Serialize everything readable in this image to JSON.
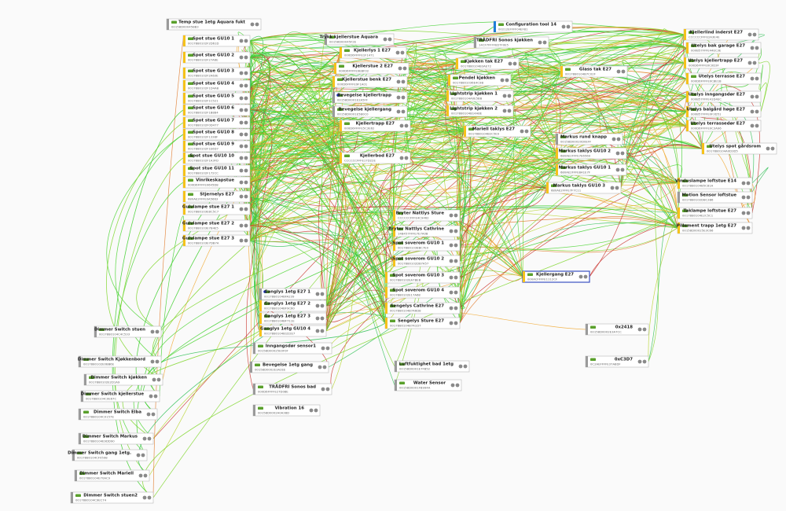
{
  "nodes": [
    {
      "label": "Temp stue 1etg Aquara fukt",
      "id": "00158D00045BB3"
    },
    {
      "label": "Configuration tool 14",
      "id": "00212EFFFF04EF81"
    },
    {
      "label": "Trykk kjellerstue Aquara",
      "id": "00158D00045F2E"
    },
    {
      "label": "TRÅDFRI Sonos kjøkken",
      "id": "14CF7FFFFED7F0E5"
    },
    {
      "label": "Kjellerlind inderst E27",
      "id": "CCCCCCFFFE2A3E4E"
    },
    {
      "label": "Spot stue GU10 1",
      "id": "0017880102F2D61D"
    },
    {
      "label": "Kjellerlys 1 E27",
      "id": "000D6FFFFE1F1471"
    },
    {
      "label": "Utelys bak garage E27",
      "id": "000B57FFFE44EC3E"
    },
    {
      "label": "Spot stue GU10 2",
      "id": "0017880102F27A6E"
    },
    {
      "label": "Kjøkken tak E27",
      "id": "0017880104B3AE72"
    },
    {
      "label": "Utelys kjellertrapp E27",
      "id": "000D6FFFFE0C0D3F"
    },
    {
      "label": "Kjellerstue 2 E27",
      "id": "000D6FFFFE9EBF02"
    },
    {
      "label": "Glass tak E27",
      "id": "0017880104B7C02F"
    },
    {
      "label": "Spot stue GU10 3",
      "id": "0017880102F2A63E"
    },
    {
      "label": "Pendel kjøkken",
      "id": "00178801036E4C9B"
    },
    {
      "label": "Utelys terrasse E27",
      "id": "000D6FFFFE0C8E1B"
    },
    {
      "label": "Kjellerstue benk E27",
      "id": "000D6FFFFE9F1A01"
    },
    {
      "label": "Spot stue GU10 4",
      "id": "0017880102F1D4A8"
    },
    {
      "label": "Lightstrip kjøkken 1",
      "id": "0017880104A0E5BB"
    },
    {
      "label": "Bevegelse kjellertrapp",
      "id": "00158D0001E2A5FF"
    },
    {
      "label": "Utelys inngangsdør E27",
      "id": "000B57FFFE41D4EC"
    },
    {
      "label": "Spot stue GU10 5",
      "id": "0017880102F1C521"
    },
    {
      "label": "Lightstrip kjøkken 2",
      "id": "0017880104B14A8E"
    },
    {
      "label": "Bevegelse kjellergang",
      "id": "00158D0001E5B0C0"
    },
    {
      "label": "Utelys balgård høge E27",
      "id": "000B57FFFE0F3D51"
    },
    {
      "label": "Spot stue GU10 6",
      "id": "0017880102F1B884"
    },
    {
      "label": "Spot stue GU10 7",
      "id": "0017880102F0D477"
    },
    {
      "label": "Kjellertrapp E27",
      "id": "000D6FFFFE5C3E62"
    },
    {
      "label": "Utelys terrassedør E27",
      "id": "000D6FFFFE0C3A96"
    },
    {
      "label": "Mariell taklys E27",
      "id": "0017880104B2C5E9"
    },
    {
      "label": "Spot stue GU10 8",
      "id": "0017880102F1338F"
    },
    {
      "label": "Markus rund knapp",
      "id": "00158D00020D0EFF"
    },
    {
      "label": "Spot stue GU10 9",
      "id": "0017880102F1E6D7"
    },
    {
      "label": "Utelys spot gårdsrom",
      "id": "0017880104A0D3D5"
    },
    {
      "label": "Markus taklys GU10 2",
      "id": "680AE2FFFE7E6569"
    },
    {
      "label": "Kjellerbod E27",
      "id": "CCCCCCFFFE17D22E"
    },
    {
      "label": "Spot stue GU10 10",
      "id": "0017880102F1A3FD"
    },
    {
      "label": "Spot stue GU10 11",
      "id": "0017880102F172CC"
    },
    {
      "label": "Markus taklys GU10 1",
      "id": "680AE2FFFE8A1E7F"
    },
    {
      "label": "Vinduslampe loftstue E14",
      "id": "0017880104B5C81A"
    },
    {
      "label": "Vinrikeskapstue",
      "id": "000D6FFFFE0645D8"
    },
    {
      "label": "Markus taklys GU10 3",
      "id": "680AE2FFFE7F7C11"
    },
    {
      "label": "Motion Sensor loftstue",
      "id": "0017880102D8C386"
    },
    {
      "label": "Stjernelys E27",
      "id": "680AE2FFFE0A5663"
    },
    {
      "label": "Gulvlampe stue E27 1",
      "id": "0017880103E8C5C7"
    },
    {
      "label": "Taklampe loftstue E27",
      "id": "0017880104E2C5C1"
    },
    {
      "label": "Bryter Nattlys Sture",
      "id": "CCCCCCFFFE4C9462"
    },
    {
      "label": "Gulvlampe stue E27 2",
      "id": "0017880103E7B4E5"
    },
    {
      "label": "Pillement trapp 1etg E27",
      "id": "00158D00025E3C66"
    },
    {
      "label": "Bryter Nattlys Cathrine",
      "id": "14B457FFFE7E7A0B"
    },
    {
      "label": "Gulvlampe stue E27 3",
      "id": "0017880103E7DB7A"
    },
    {
      "label": "Spot soverom GU10 1",
      "id": "00178801038BC7E0"
    },
    {
      "label": "Spot soverom GU10 2",
      "id": "0017880102D87A57"
    },
    {
      "label": "Kjellergang E27",
      "id": "000ACFFFFE1112CF"
    },
    {
      "label": "Spot soverom GU10 3",
      "id": "0017880102EA7BEB"
    },
    {
      "label": "Ganglys 1etg E27 1",
      "id": "0017880104BFA239"
    },
    {
      "label": "Spot soverom GU10 4",
      "id": "0017880102E17A68"
    },
    {
      "label": "Ganglys 1etg E27 2",
      "id": "0017880104BF9C60"
    },
    {
      "label": "Sengelys Cathrine E27",
      "id": "0017880104B7A6D8"
    },
    {
      "label": "Ganglys 1etg E27 3",
      "id": "0017880104BF711E"
    },
    {
      "label": "Sengelys Sture E27",
      "id": "0017880104B7A1D7"
    },
    {
      "label": "0x2418",
      "id": "00158D0002E3A7CC"
    },
    {
      "label": "Dimmer Switch stuen",
      "id": "0017880104C4C533"
    },
    {
      "label": "Ganglys 1etg GU10 4",
      "id": "0017880104B1D2E7"
    },
    {
      "label": "Inngangsdør sensor1",
      "id": "00158D00025E0F0F"
    },
    {
      "label": "Dimmer Switch Kjøkkenbord",
      "id": "0017880102E0BB6E"
    },
    {
      "label": "0xC3D7",
      "id": "0C2AEFFFFE37A8DF"
    },
    {
      "label": "Bevegelse 1etg gang",
      "id": "00158D0002E3A2EE"
    },
    {
      "label": "Luftfuktighet bad 1etg",
      "id": "00158D0001E7FB52"
    },
    {
      "label": "Dimmer Switch kjøkken",
      "id": "0017880102E2D1A9"
    },
    {
      "label": "Water Sensor",
      "id": "00158D0001FB994A"
    },
    {
      "label": "TRÅDFRI Sonos bad",
      "id": "000D6FFFFE27D08E"
    },
    {
      "label": "Dimmer Switch kjellerstue",
      "id": "0017880104C0E67C"
    },
    {
      "label": "Vibration 16",
      "id": "00158D0002A0A38D"
    },
    {
      "label": "Dimmer Switch Elba",
      "id": "0017880104C0157E"
    },
    {
      "label": "Dimmer Switch Markus",
      "id": "0017880104E9DD90"
    },
    {
      "label": "Dimmer Switch gang 1etg.",
      "id": "0017880104CF0598"
    },
    {
      "label": "Dimmer Switch Mariell",
      "id": "0017880104E70AC9"
    },
    {
      "label": "Dimmer Switch stuen2",
      "id": "0017880104C9EC74"
    }
  ]
}
